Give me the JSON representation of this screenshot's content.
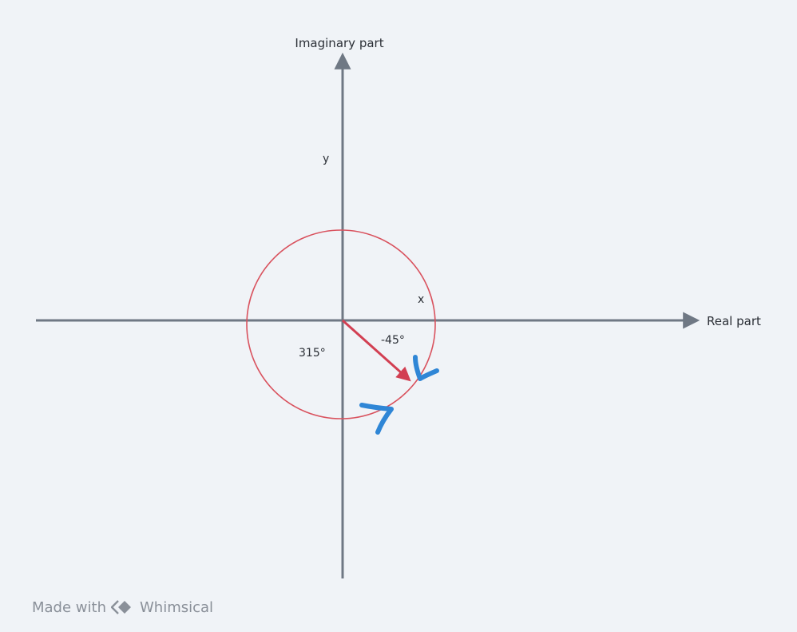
{
  "labels": {
    "x_axis": "Real part",
    "y_axis": "Imaginary part",
    "y_marker": "y",
    "x_marker": "x",
    "angle_negative": "-45°",
    "angle_positive": "315°"
  },
  "watermark": {
    "prefix": "Made with",
    "brand": "Whimsical",
    "icon": "whimsical-logo-icon"
  },
  "colors": {
    "background": "#f0f3f7",
    "axis": "#6f7884",
    "circle": "#d9525e",
    "vector": "#d23f52",
    "annotation": "#2f86d6",
    "text": "#2b2f36"
  }
}
